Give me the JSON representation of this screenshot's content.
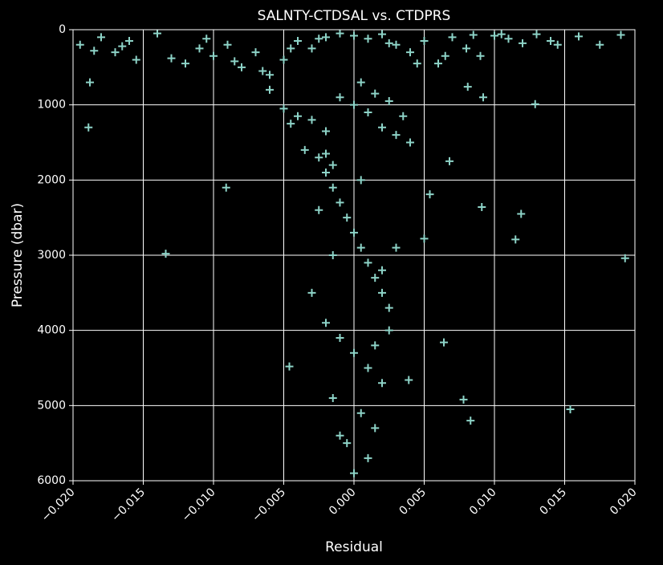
{
  "chart_data": {
    "type": "scatter",
    "title": "SALNTY-CTDSAL vs. CTDPRS",
    "x_label": "Residual",
    "y_label": "Pressure (dbar)",
    "color": "#8dd3c7",
    "marker": "+",
    "grid": true,
    "y_inverted": true,
    "xlim": [
      -0.02,
      0.02
    ],
    "ylim": [
      6000,
      0
    ],
    "xticks": [
      {
        "value": -0.02,
        "label": "−0.020"
      },
      {
        "value": -0.015,
        "label": "−0.015"
      },
      {
        "value": -0.01,
        "label": "−0.010"
      },
      {
        "value": -0.005,
        "label": "−0.005"
      },
      {
        "value": 0,
        "label": "0.000"
      },
      {
        "value": 0.005,
        "label": "0.005"
      },
      {
        "value": 0.01,
        "label": "0.010"
      },
      {
        "value": 0.015,
        "label": "0.015"
      },
      {
        "value": 0.02,
        "label": "0.020"
      }
    ],
    "yticks": [
      0,
      1000,
      2000,
      3000,
      4000,
      5000,
      6000
    ],
    "x": [
      -0.0195,
      -0.018,
      -0.017,
      -0.016,
      -0.0155,
      -0.014,
      -0.012,
      -0.011,
      -0.01,
      -0.009,
      -0.008,
      -0.007,
      -0.006,
      -0.005,
      -0.004,
      -0.003,
      -0.002,
      -0.001,
      0,
      0.001,
      0.002,
      0.003,
      0.004,
      0.005,
      0.006,
      0.007,
      0.008,
      0.009,
      0.01,
      0.011,
      0.012,
      0.013,
      0.014,
      0.016,
      0.0175,
      0.019,
      -0.0185,
      -0.0165,
      -0.013,
      -0.0105,
      -0.0085,
      -0.0065,
      -0.0045,
      -0.0025,
      0.0025,
      0.0045,
      0.0065,
      0.0085,
      0.0105,
      0.0145,
      -0.006,
      -0.005,
      -0.004,
      -0.003,
      -0.002,
      -0.001,
      0,
      0.001,
      0.002,
      0.003,
      0.004,
      -0.0035,
      -0.0025,
      -0.0015,
      0.0005,
      0.0015,
      0.0025,
      -0.0045,
      0.0035,
      -0.002,
      -0.002,
      -0.0015,
      -0.001,
      -0.0005,
      0,
      0.0005,
      0.001,
      0.0015,
      0.002,
      0.0025,
      -0.0025,
      -0.002,
      -0.001,
      0,
      0.001,
      0.002,
      0.003,
      -0.003,
      -0.0015,
      0.0005,
      0.0015,
      -0.0005,
      0.001,
      -0.001,
      0.0025,
      0,
      0.002,
      -0.0015,
      0.0015,
      0.0005,
      -0.0189,
      -0.0188,
      -0.0091,
      -0.0134,
      -0.0046,
      0.0129,
      0.0068,
      0.0054,
      0.0091,
      0.0119,
      0.0115,
      0.005,
      0.0193,
      0.0064,
      0.0078,
      0.0083,
      0.0154,
      0.0039,
      0.0092,
      0.0081
    ],
    "y": [
      200,
      100,
      300,
      150,
      400,
      50,
      450,
      250,
      350,
      200,
      500,
      300,
      600,
      400,
      150,
      250,
      100,
      50,
      80,
      120,
      60,
      200,
      300,
      150,
      450,
      100,
      250,
      350,
      80,
      120,
      180,
      60,
      150,
      90,
      200,
      70,
      280,
      220,
      380,
      120,
      420,
      550,
      250,
      120,
      180,
      450,
      350,
      70,
      60,
      200,
      800,
      1050,
      1150,
      1200,
      1350,
      900,
      1000,
      1100,
      1300,
      1400,
      1500,
      1600,
      1700,
      1800,
      700,
      850,
      950,
      1250,
      1150,
      1650,
      1900,
      2100,
      2300,
      2500,
      2700,
      2900,
      3100,
      3300,
      3500,
      3700,
      2400,
      3900,
      4100,
      4300,
      4500,
      4700,
      2900,
      3500,
      4900,
      5100,
      5300,
      5500,
      5700,
      5400,
      4000,
      5900,
      3200,
      3000,
      4200,
      2000,
      1300,
      700,
      2100,
      2980,
      4480,
      990,
      1750,
      2190,
      2360,
      2450,
      2790,
      2780,
      3040,
      4160,
      4920,
      5200,
      5050,
      4660,
      900,
      760
    ]
  }
}
